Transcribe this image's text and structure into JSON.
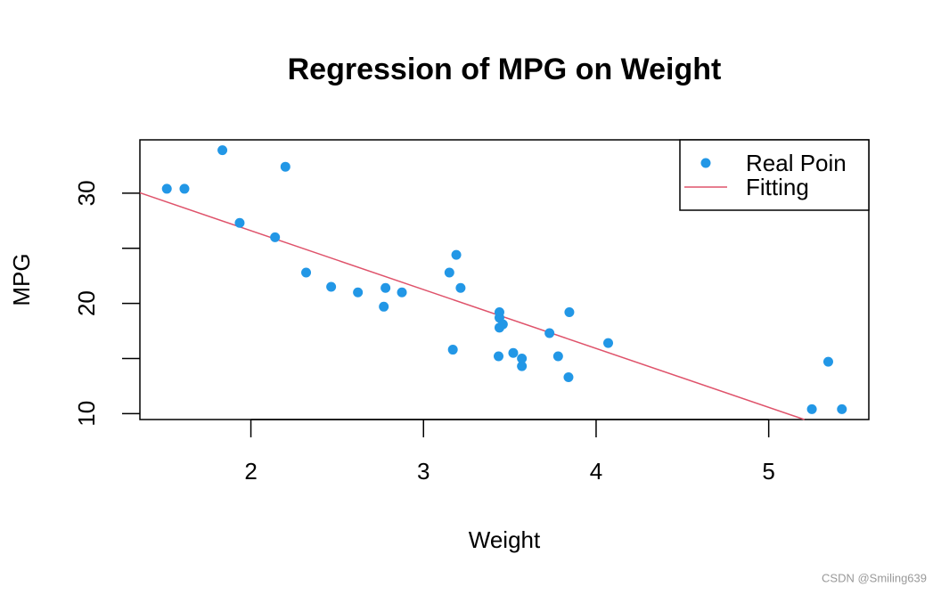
{
  "chart_data": {
    "type": "scatter",
    "title": "Regression of MPG on Weight",
    "x_label": "Weight",
    "y_label": "MPG",
    "series": [
      {
        "name": "Real Poin",
        "color": "#2297E6",
        "x": [
          2.62,
          2.875,
          2.32,
          3.215,
          3.44,
          3.46,
          3.57,
          3.19,
          3.15,
          3.44,
          3.44,
          4.07,
          3.73,
          3.78,
          5.25,
          5.424,
          5.345,
          2.2,
          1.615,
          1.835,
          2.465,
          3.52,
          3.435,
          3.84,
          3.845,
          1.935,
          2.14,
          1.513,
          3.17,
          2.77,
          3.57,
          2.78
        ],
        "values": [
          21.0,
          21.0,
          22.8,
          21.4,
          18.7,
          18.1,
          14.3,
          24.4,
          22.8,
          19.2,
          17.8,
          16.4,
          17.3,
          15.2,
          10.4,
          10.4,
          14.7,
          32.4,
          30.4,
          33.9,
          21.5,
          15.5,
          15.2,
          13.3,
          19.2,
          27.3,
          26.0,
          30.4,
          15.8,
          19.7,
          15.0,
          21.4
        ]
      }
    ],
    "fit": {
      "name": "Fitting",
      "color": "#DF536B",
      "intercept": 37.285,
      "slope": -5.344
    },
    "xlim": [
      1.357,
      5.58
    ],
    "ylim": [
      9.46,
      34.84
    ],
    "xticks": [
      2,
      3,
      4,
      5
    ],
    "yticks": [
      10,
      20,
      30
    ],
    "yticks_unlabeled": [
      15,
      25
    ],
    "legend": "top-right",
    "watermark": "CSDN @Smiling639"
  }
}
